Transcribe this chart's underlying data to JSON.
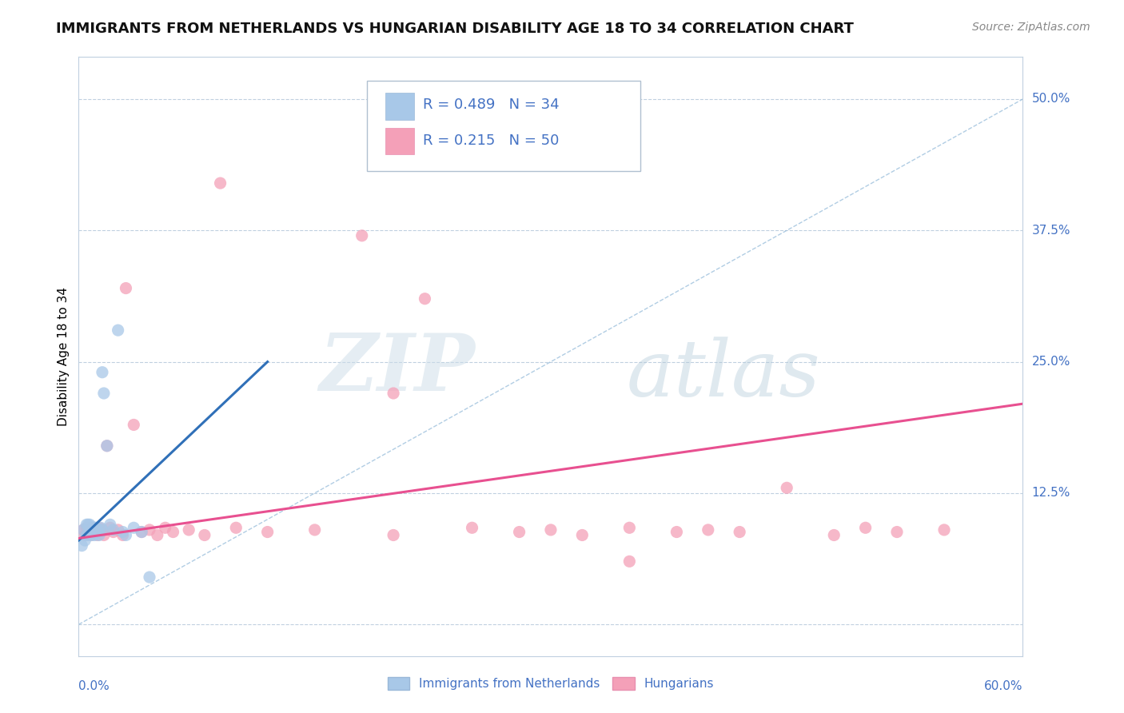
{
  "title": "IMMIGRANTS FROM NETHERLANDS VS HUNGARIAN DISABILITY AGE 18 TO 34 CORRELATION CHART",
  "source": "Source: ZipAtlas.com",
  "ylabel": "Disability Age 18 to 34",
  "yticks": [
    0.0,
    0.125,
    0.25,
    0.375,
    0.5
  ],
  "xlim": [
    0.0,
    0.6
  ],
  "ylim": [
    -0.03,
    0.54
  ],
  "legend_r1": "R = 0.489",
  "legend_n1": "N = 34",
  "legend_r2": "R = 0.215",
  "legend_n2": "N = 50",
  "legend_label1": "Immigrants from Netherlands",
  "legend_label2": "Hungarians",
  "blue_color": "#a8c8e8",
  "pink_color": "#f4a0b8",
  "blue_line_color": "#3070b8",
  "pink_line_color": "#e85090",
  "blue_scatter_x": [
    0.002,
    0.003,
    0.004,
    0.005,
    0.005,
    0.006,
    0.006,
    0.007,
    0.007,
    0.008,
    0.008,
    0.009,
    0.009,
    0.01,
    0.01,
    0.01,
    0.011,
    0.011,
    0.012,
    0.012,
    0.013,
    0.014,
    0.015,
    0.015,
    0.016,
    0.018,
    0.02,
    0.022,
    0.025,
    0.028,
    0.03,
    0.035,
    0.04,
    0.045
  ],
  "blue_scatter_y": [
    0.075,
    0.09,
    0.08,
    0.085,
    0.095,
    0.085,
    0.095,
    0.088,
    0.095,
    0.09,
    0.085,
    0.092,
    0.088,
    0.09,
    0.085,
    0.092,
    0.088,
    0.092,
    0.09,
    0.088,
    0.085,
    0.092,
    0.24,
    0.09,
    0.22,
    0.17,
    0.095,
    0.09,
    0.28,
    0.088,
    0.085,
    0.092,
    0.088,
    0.045
  ],
  "pink_scatter_x": [
    0.003,
    0.004,
    0.005,
    0.006,
    0.007,
    0.008,
    0.009,
    0.01,
    0.011,
    0.012,
    0.013,
    0.014,
    0.015,
    0.016,
    0.018,
    0.02,
    0.022,
    0.025,
    0.028,
    0.03,
    0.035,
    0.04,
    0.045,
    0.05,
    0.055,
    0.06,
    0.07,
    0.08,
    0.09,
    0.1,
    0.12,
    0.15,
    0.18,
    0.2,
    0.22,
    0.25,
    0.28,
    0.3,
    0.32,
    0.35,
    0.38,
    0.4,
    0.42,
    0.45,
    0.48,
    0.5,
    0.52,
    0.55,
    0.2,
    0.35
  ],
  "pink_scatter_y": [
    0.09,
    0.085,
    0.092,
    0.088,
    0.09,
    0.085,
    0.092,
    0.088,
    0.09,
    0.085,
    0.092,
    0.088,
    0.09,
    0.085,
    0.17,
    0.092,
    0.088,
    0.09,
    0.085,
    0.32,
    0.19,
    0.088,
    0.09,
    0.085,
    0.092,
    0.088,
    0.09,
    0.085,
    0.42,
    0.092,
    0.088,
    0.09,
    0.37,
    0.085,
    0.31,
    0.092,
    0.088,
    0.09,
    0.085,
    0.092,
    0.088,
    0.09,
    0.088,
    0.13,
    0.085,
    0.092,
    0.088,
    0.09,
    0.22,
    0.06
  ],
  "blue_line_x0": 0.0,
  "blue_line_x1": 0.12,
  "blue_line_y0": 0.08,
  "blue_line_y1": 0.25,
  "pink_line_x0": 0.0,
  "pink_line_x1": 0.6,
  "pink_line_y0": 0.082,
  "pink_line_y1": 0.21,
  "dash_line_x0": 0.0,
  "dash_line_x1": 0.6,
  "dash_line_y0": 0.0,
  "dash_line_y1": 0.5,
  "background_color": "#ffffff",
  "grid_color": "#c0d0e0",
  "title_fontsize": 13,
  "axis_label_fontsize": 11,
  "tick_fontsize": 11,
  "legend_fontsize": 13
}
